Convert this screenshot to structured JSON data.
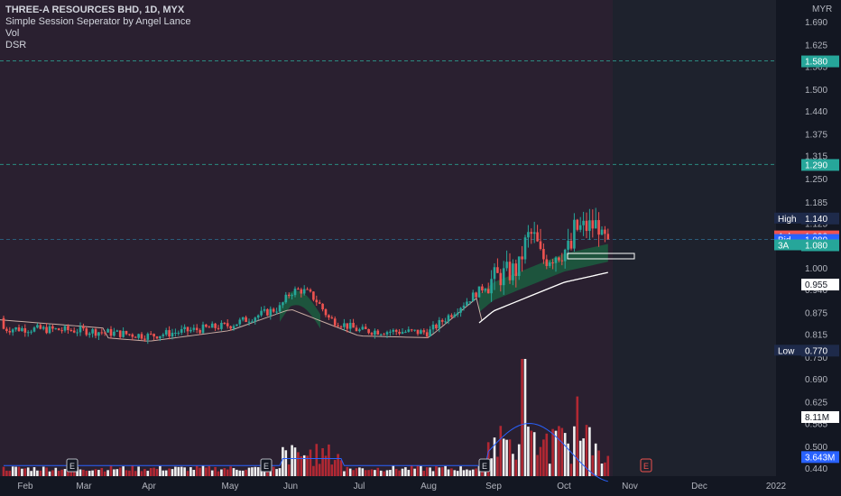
{
  "legend": {
    "title": "THREE-A RESOURCES BHD, 1D, MYX",
    "line2": "Simple Session Seperator by Angel Lance",
    "line3": "Vol",
    "line4": "DSR"
  },
  "price_axis": {
    "currency": "MYR",
    "ticks": [
      "1.690",
      "1.625",
      "1.565",
      "1.500",
      "1.440",
      "1.375",
      "1.315",
      "1.250",
      "1.185",
      "1.125",
      "1.065",
      "1.000",
      "0.940",
      "0.875",
      "0.815",
      "0.750",
      "0.690",
      "0.625",
      "0.565",
      "0.500",
      "0.440"
    ]
  },
  "badges": [
    {
      "label": "",
      "value": "1.580",
      "price": 1.58,
      "bg": "#26a69a",
      "fg": "#ffffff"
    },
    {
      "label": "",
      "value": "1.290",
      "price": 1.29,
      "bg": "#26a69a",
      "fg": "#ffffff"
    },
    {
      "label": "High",
      "value": "1.140",
      "price": 1.14,
      "bg": "#1e2a4a",
      "fg": "#ffffff"
    },
    {
      "label": "Ask",
      "value": "1.090",
      "price": 1.09,
      "bg": "#ef5350",
      "fg": "#ffffff"
    },
    {
      "label": "Bid",
      "value": "1.080",
      "price": 1.08,
      "bg": "#2962ff",
      "fg": "#ffffff"
    },
    {
      "label": "3A",
      "value": "1.080",
      "price": 1.065,
      "bg": "#26a69a",
      "fg": "#ffffff"
    },
    {
      "label": "",
      "value": "0.955",
      "price": 0.955,
      "bg": "#ffffff",
      "fg": "#131722"
    },
    {
      "label": "Low",
      "value": "0.770",
      "price": 0.77,
      "bg": "#1e2a4a",
      "fg": "#ffffff"
    },
    {
      "label": "",
      "value": "8.11M",
      "price": 0.584,
      "bg": "#ffffff",
      "fg": "#131722"
    },
    {
      "label": "",
      "value": "3.643M",
      "price": 0.472,
      "bg": "#2962ff",
      "fg": "#ffffff"
    }
  ],
  "time_axis": [
    "Feb",
    "Mar",
    "Apr",
    "May",
    "Jun",
    "Jul",
    "Aug",
    "Sep",
    "Oct",
    "Nov",
    "Dec",
    "2022"
  ],
  "earnings_marker": "E",
  "colors": {
    "bg_session": "#2a2030",
    "bg_future": "#1e222d",
    "up": "#26a69a",
    "down": "#ef5350",
    "vol_up": "#f0f0f0",
    "vol_down": "#b22833",
    "dsr_line": "#2962ff",
    "ribbon": "#1b5e3f",
    "ma": "#ffffff"
  },
  "chart_data": {
    "type": "candlestick",
    "title": "THREE-A RESOURCES BHD, 1D, MYX",
    "ylim": [
      0.44,
      1.69
    ],
    "currency": "MYR",
    "horizontal_levels": [
      1.58,
      1.29,
      1.08
    ],
    "last_price": 1.08,
    "high": 1.14,
    "low": 0.77,
    "ask": 1.09,
    "bid": 1.08,
    "ma_last": 0.955,
    "volume_last": "8.11M",
    "dsr_last": "3.643M",
    "anchors": [
      {
        "month": "Feb",
        "close": 0.83
      },
      {
        "month": "Mar",
        "close": 0.825
      },
      {
        "month": "Apr",
        "close": 0.81
      },
      {
        "month": "May",
        "close": 0.84
      },
      {
        "month": "Jun",
        "close": 0.9
      },
      {
        "month": "Jul",
        "close": 0.825
      },
      {
        "month": "Aug",
        "close": 0.82
      },
      {
        "month": "Sep",
        "close": 0.97
      },
      {
        "month": "Oct",
        "close": 1.05
      },
      {
        "month": "Oct-end",
        "close": 1.08
      }
    ]
  }
}
